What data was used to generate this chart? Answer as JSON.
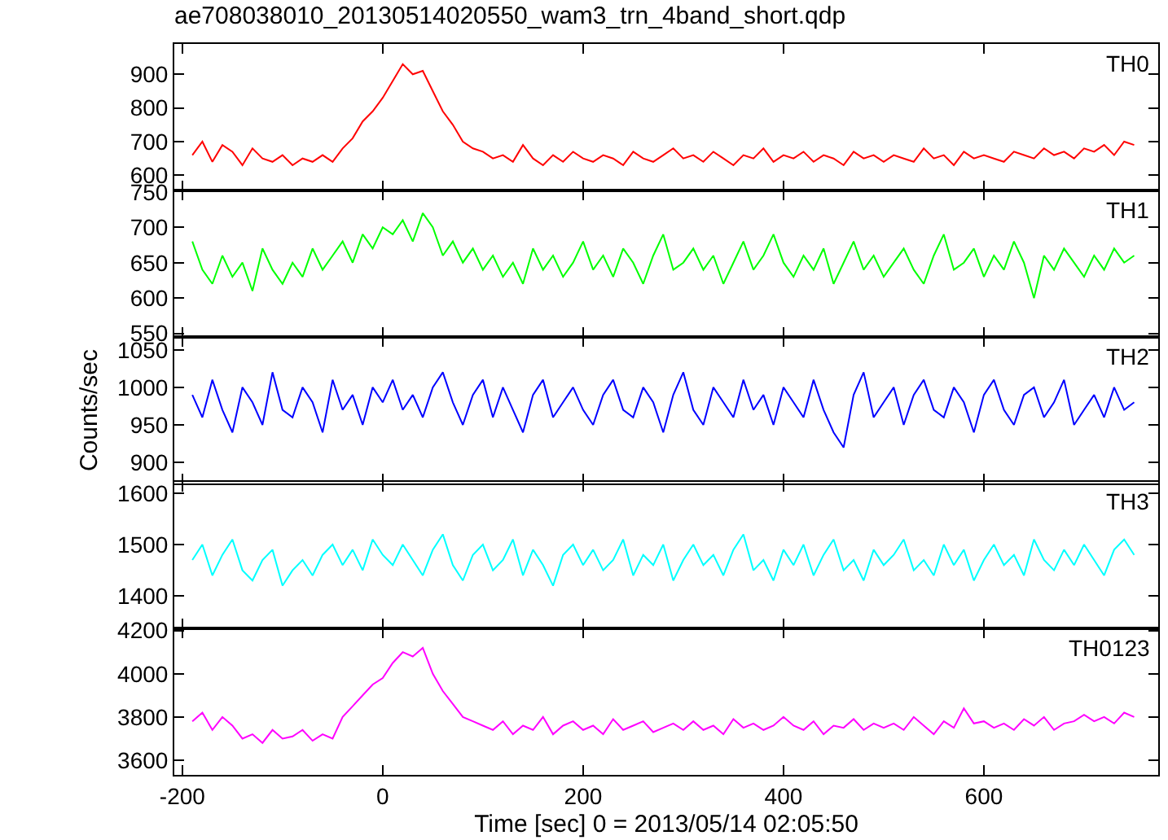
{
  "chart_data": [
    {
      "type": "line",
      "title": "ae708038010_20130514020550_wam3_trn_4band_short.qdp",
      "xlim": [
        -208,
        774
      ],
      "xticks": [
        -200,
        0,
        200,
        400,
        600
      ],
      "ylim": [
        555,
        990
      ],
      "yticks": [
        600,
        700,
        800,
        900
      ],
      "tick_labels": "y",
      "x": [
        -190,
        -180,
        -170,
        -160,
        -150,
        -140,
        -130,
        -120,
        -110,
        -100,
        -90,
        -80,
        -70,
        -60,
        -50,
        -40,
        -30,
        -20,
        -10,
        0,
        10,
        20,
        30,
        40,
        50,
        60,
        70,
        80,
        90,
        100,
        110,
        120,
        130,
        140,
        150,
        160,
        170,
        180,
        190,
        200,
        210,
        220,
        230,
        240,
        250,
        260,
        270,
        280,
        290,
        300,
        310,
        320,
        330,
        340,
        350,
        360,
        370,
        380,
        390,
        400,
        410,
        420,
        430,
        440,
        450,
        460,
        470,
        480,
        490,
        500,
        510,
        520,
        530,
        540,
        550,
        560,
        570,
        580,
        590,
        600,
        610,
        620,
        630,
        640,
        650,
        660,
        670,
        680,
        690,
        700,
        710,
        720,
        730,
        740,
        750
      ],
      "series": [
        {
          "name": "TH0",
          "color": "#ff0000",
          "values": [
            660,
            700,
            640,
            690,
            670,
            630,
            680,
            650,
            640,
            660,
            630,
            650,
            640,
            660,
            640,
            680,
            710,
            760,
            790,
            830,
            880,
            930,
            900,
            910,
            850,
            790,
            750,
            700,
            680,
            670,
            650,
            660,
            640,
            690,
            650,
            630,
            660,
            640,
            670,
            650,
            640,
            660,
            650,
            630,
            670,
            650,
            640,
            660,
            680,
            650,
            660,
            640,
            670,
            650,
            630,
            660,
            650,
            680,
            640,
            660,
            650,
            670,
            640,
            660,
            650,
            630,
            670,
            650,
            660,
            640,
            660,
            650,
            640,
            680,
            650,
            660,
            630,
            670,
            650,
            660,
            650,
            640,
            670,
            660,
            650,
            680,
            660,
            670,
            650,
            680,
            670,
            690,
            660,
            700,
            690
          ]
        }
      ]
    },
    {
      "type": "line",
      "xlim": [
        -208,
        774
      ],
      "xticks": [
        -200,
        0,
        200,
        400,
        600
      ],
      "ylim": [
        545,
        752
      ],
      "yticks": [
        550,
        600,
        650,
        700,
        750
      ],
      "tick_labels": "y",
      "x": [
        -190,
        -180,
        -170,
        -160,
        -150,
        -140,
        -130,
        -120,
        -110,
        -100,
        -90,
        -80,
        -70,
        -60,
        -50,
        -40,
        -30,
        -20,
        -10,
        0,
        10,
        20,
        30,
        40,
        50,
        60,
        70,
        80,
        90,
        100,
        110,
        120,
        130,
        140,
        150,
        160,
        170,
        180,
        190,
        200,
        210,
        220,
        230,
        240,
        250,
        260,
        270,
        280,
        290,
        300,
        310,
        320,
        330,
        340,
        350,
        360,
        370,
        380,
        390,
        400,
        410,
        420,
        430,
        440,
        450,
        460,
        470,
        480,
        490,
        500,
        510,
        520,
        530,
        540,
        550,
        560,
        570,
        580,
        590,
        600,
        610,
        620,
        630,
        640,
        650,
        660,
        670,
        680,
        690,
        700,
        710,
        720,
        730,
        740,
        750
      ],
      "series": [
        {
          "name": "TH1",
          "color": "#00ff00",
          "values": [
            680,
            640,
            620,
            660,
            630,
            650,
            610,
            670,
            640,
            620,
            650,
            630,
            670,
            640,
            660,
            680,
            650,
            690,
            670,
            700,
            690,
            710,
            680,
            720,
            700,
            660,
            680,
            650,
            670,
            640,
            660,
            630,
            650,
            620,
            670,
            640,
            660,
            630,
            650,
            680,
            640,
            660,
            630,
            670,
            650,
            620,
            660,
            690,
            640,
            650,
            670,
            640,
            660,
            620,
            650,
            680,
            640,
            660,
            690,
            650,
            630,
            660,
            640,
            670,
            620,
            650,
            680,
            640,
            660,
            630,
            650,
            670,
            640,
            620,
            660,
            690,
            640,
            650,
            670,
            630,
            660,
            640,
            680,
            650,
            600,
            660,
            640,
            670,
            650,
            630,
            660,
            640,
            670,
            650,
            660
          ]
        }
      ]
    },
    {
      "type": "line",
      "ylabel": "Counts/sec",
      "xlim": [
        -208,
        774
      ],
      "xticks": [
        -200,
        0,
        200,
        400,
        600
      ],
      "ylim": [
        872,
        1067
      ],
      "yticks": [
        900,
        950,
        1000,
        1050
      ],
      "tick_labels": "y",
      "x": [
        -190,
        -180,
        -170,
        -160,
        -150,
        -140,
        -130,
        -120,
        -110,
        -100,
        -90,
        -80,
        -70,
        -60,
        -50,
        -40,
        -30,
        -20,
        -10,
        0,
        10,
        20,
        30,
        40,
        50,
        60,
        70,
        80,
        90,
        100,
        110,
        120,
        130,
        140,
        150,
        160,
        170,
        180,
        190,
        200,
        210,
        220,
        230,
        240,
        250,
        260,
        270,
        280,
        290,
        300,
        310,
        320,
        330,
        340,
        350,
        360,
        370,
        380,
        390,
        400,
        410,
        420,
        430,
        440,
        450,
        460,
        470,
        480,
        490,
        500,
        510,
        520,
        530,
        540,
        550,
        560,
        570,
        580,
        590,
        600,
        610,
        620,
        630,
        640,
        650,
        660,
        670,
        680,
        690,
        700,
        710,
        720,
        730,
        740,
        750
      ],
      "series": [
        {
          "name": "TH2",
          "color": "#0000ff",
          "values": [
            990,
            960,
            1010,
            970,
            940,
            1000,
            980,
            950,
            1020,
            970,
            960,
            1000,
            980,
            940,
            1010,
            970,
            990,
            950,
            1000,
            980,
            1010,
            970,
            990,
            960,
            1000,
            1020,
            980,
            950,
            990,
            1010,
            960,
            1000,
            970,
            940,
            990,
            1010,
            960,
            980,
            1000,
            970,
            950,
            990,
            1010,
            970,
            960,
            1000,
            980,
            940,
            990,
            1020,
            970,
            950,
            1000,
            980,
            960,
            1010,
            970,
            990,
            950,
            1000,
            980,
            960,
            1010,
            970,
            940,
            920,
            990,
            1020,
            960,
            980,
            1000,
            950,
            990,
            1010,
            970,
            960,
            1000,
            980,
            940,
            990,
            1010,
            970,
            950,
            990,
            1000,
            960,
            980,
            1010,
            950,
            970,
            990,
            960,
            1000,
            970,
            980
          ]
        }
      ]
    },
    {
      "type": "line",
      "xlim": [
        -208,
        774
      ],
      "xticks": [
        -200,
        0,
        200,
        400,
        600
      ],
      "ylim": [
        1337,
        1622
      ],
      "yticks": [
        1400,
        1500,
        1600
      ],
      "tick_labels": "y",
      "x": [
        -190,
        -180,
        -170,
        -160,
        -150,
        -140,
        -130,
        -120,
        -110,
        -100,
        -90,
        -80,
        -70,
        -60,
        -50,
        -40,
        -30,
        -20,
        -10,
        0,
        10,
        20,
        30,
        40,
        50,
        60,
        70,
        80,
        90,
        100,
        110,
        120,
        130,
        140,
        150,
        160,
        170,
        180,
        190,
        200,
        210,
        220,
        230,
        240,
        250,
        260,
        270,
        280,
        290,
        300,
        310,
        320,
        330,
        340,
        350,
        360,
        370,
        380,
        390,
        400,
        410,
        420,
        430,
        440,
        450,
        460,
        470,
        480,
        490,
        500,
        510,
        520,
        530,
        540,
        550,
        560,
        570,
        580,
        590,
        600,
        610,
        620,
        630,
        640,
        650,
        660,
        670,
        680,
        690,
        700,
        710,
        720,
        730,
        740,
        750
      ],
      "series": [
        {
          "name": "TH3",
          "color": "#00ffff",
          "values": [
            1470,
            1500,
            1440,
            1480,
            1510,
            1450,
            1430,
            1470,
            1490,
            1420,
            1450,
            1470,
            1440,
            1480,
            1500,
            1460,
            1490,
            1450,
            1510,
            1480,
            1460,
            1500,
            1470,
            1440,
            1490,
            1520,
            1460,
            1430,
            1480,
            1500,
            1450,
            1470,
            1510,
            1440,
            1490,
            1460,
            1420,
            1480,
            1500,
            1460,
            1490,
            1450,
            1470,
            1510,
            1440,
            1480,
            1460,
            1500,
            1430,
            1470,
            1500,
            1460,
            1480,
            1440,
            1490,
            1520,
            1450,
            1470,
            1430,
            1490,
            1460,
            1500,
            1440,
            1480,
            1510,
            1450,
            1470,
            1430,
            1490,
            1460,
            1480,
            1510,
            1450,
            1470,
            1440,
            1500,
            1460,
            1490,
            1430,
            1470,
            1500,
            1460,
            1480,
            1440,
            1510,
            1470,
            1450,
            1490,
            1460,
            1500,
            1470,
            1440,
            1490,
            1510,
            1480
          ]
        }
      ]
    },
    {
      "type": "line",
      "xlabel": "Time [sec] 0 = 2013/05/14 02:05:50",
      "xlim": [
        -208,
        774
      ],
      "xticks": [
        -200,
        0,
        200,
        400,
        600
      ],
      "ylim": [
        3532,
        4210
      ],
      "yticks": [
        3600,
        3800,
        4000,
        4200
      ],
      "x": [
        -190,
        -180,
        -170,
        -160,
        -150,
        -140,
        -130,
        -120,
        -110,
        -100,
        -90,
        -80,
        -70,
        -60,
        -50,
        -40,
        -30,
        -20,
        -10,
        0,
        10,
        20,
        30,
        40,
        50,
        60,
        70,
        80,
        90,
        100,
        110,
        120,
        130,
        140,
        150,
        160,
        170,
        180,
        190,
        200,
        210,
        220,
        230,
        240,
        250,
        260,
        270,
        280,
        290,
        300,
        310,
        320,
        330,
        340,
        350,
        360,
        370,
        380,
        390,
        400,
        410,
        420,
        430,
        440,
        450,
        460,
        470,
        480,
        490,
        500,
        510,
        520,
        530,
        540,
        550,
        560,
        570,
        580,
        590,
        600,
        610,
        620,
        630,
        640,
        650,
        660,
        670,
        680,
        690,
        700,
        710,
        720,
        730,
        740,
        750
      ],
      "series": [
        {
          "name": "TH0123",
          "color": "#ff00ff",
          "values": [
            3780,
            3820,
            3740,
            3800,
            3760,
            3700,
            3720,
            3680,
            3740,
            3700,
            3710,
            3740,
            3690,
            3720,
            3700,
            3800,
            3850,
            3900,
            3950,
            3980,
            4050,
            4100,
            4080,
            4120,
            4000,
            3920,
            3860,
            3800,
            3780,
            3760,
            3740,
            3780,
            3720,
            3760,
            3740,
            3800,
            3720,
            3760,
            3780,
            3740,
            3760,
            3720,
            3790,
            3740,
            3760,
            3780,
            3730,
            3750,
            3770,
            3740,
            3780,
            3740,
            3760,
            3720,
            3790,
            3750,
            3770,
            3740,
            3760,
            3800,
            3760,
            3740,
            3780,
            3720,
            3760,
            3750,
            3790,
            3740,
            3770,
            3750,
            3770,
            3740,
            3800,
            3760,
            3720,
            3780,
            3750,
            3840,
            3770,
            3780,
            3750,
            3770,
            3740,
            3790,
            3760,
            3800,
            3740,
            3770,
            3780,
            3810,
            3780,
            3800,
            3770,
            3820,
            3800
          ]
        }
      ]
    }
  ]
}
